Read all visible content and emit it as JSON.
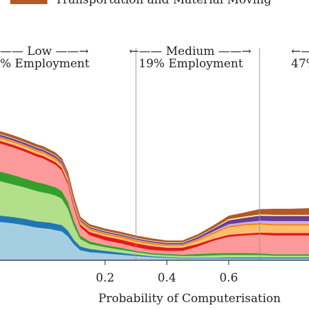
{
  "legend": {
    "visible_entry": "Transportation and Material Moving",
    "visible_color": "#b45a24"
  },
  "regions": [
    {
      "name_line": "—— Low ——→",
      "emp_line": "% Employment"
    },
    {
      "name_line": "←—— Medium ——→",
      "emp_line": "19% Employment"
    },
    {
      "name_line": "←—",
      "emp_line": "47%"
    }
  ],
  "chart_data": {
    "type": "area",
    "stacked": true,
    "xlabel": "Probability of Computerisation",
    "ylabel": "",
    "xlim": [
      -0.14,
      0.86
    ],
    "x_ticks": [
      0.2,
      0.4,
      0.6
    ],
    "x_tick_labels": [
      "0.2",
      "0.4",
      "0.6"
    ],
    "region_boundaries": [
      0.3,
      0.7
    ],
    "x": [
      -0.14,
      -0.1,
      -0.06,
      -0.04,
      -0.02,
      0.0,
      0.02,
      0.04,
      0.06,
      0.08,
      0.1,
      0.12,
      0.15,
      0.2,
      0.25,
      0.3,
      0.35,
      0.4,
      0.45,
      0.5,
      0.55,
      0.6,
      0.65,
      0.7,
      0.75,
      0.8,
      0.86
    ],
    "series": [
      {
        "color": "#a6cee3",
        "values": [
          60,
          58,
          55,
          53,
          51,
          50,
          49,
          47,
          45,
          37,
          24,
          15,
          12,
          10,
          8,
          6,
          4,
          3,
          2,
          2,
          2,
          2,
          2,
          2,
          2,
          2,
          2
        ]
      },
      {
        "color": "#1f78b4",
        "values": [
          10,
          10,
          10,
          10,
          10,
          10,
          10,
          10,
          10,
          9,
          7,
          6,
          5,
          4,
          3,
          2,
          1.5,
          1,
          1,
          1,
          1,
          1.5,
          1.5,
          1.5,
          1.5,
          1.5,
          1.5
        ]
      },
      {
        "color": "#b2df8a",
        "values": [
          55,
          52,
          50,
          49,
          48,
          47,
          46,
          45,
          42,
          35,
          22,
          12,
          8,
          6,
          5,
          4,
          3,
          3,
          3,
          3,
          4,
          4,
          4,
          4,
          3,
          3,
          3
        ]
      },
      {
        "color": "#33a02c",
        "values": [
          15,
          15,
          14,
          14,
          14,
          14,
          13,
          13,
          12,
          11,
          8,
          5,
          4,
          3,
          3,
          2,
          2,
          2,
          2,
          3,
          3,
          3,
          3,
          2.5,
          2,
          2,
          2
        ]
      },
      {
        "color": "#fb9a99",
        "values": [
          45,
          44,
          43,
          42,
          41,
          40,
          38,
          36,
          33,
          28,
          20,
          14,
          10,
          8,
          7,
          6,
          5,
          5,
          6,
          12,
          20,
          26,
          28,
          30,
          30,
          30,
          30
        ]
      },
      {
        "color": "#e31a1c",
        "values": [
          4,
          4,
          4,
          4,
          4,
          4,
          4,
          4,
          4,
          4,
          4,
          4,
          5,
          6,
          6,
          6,
          6,
          5,
          5,
          4,
          3,
          3,
          3,
          3,
          4,
          4,
          4
        ]
      },
      {
        "color": "#fdbf6f",
        "values": [
          4,
          4,
          4,
          4,
          4,
          4,
          4,
          4,
          4,
          4,
          4,
          3,
          3,
          3,
          3,
          3,
          3,
          3,
          3,
          5,
          8,
          12,
          13,
          13,
          12,
          12,
          12
        ]
      },
      {
        "color": "#ff7f00",
        "values": [
          2,
          2,
          2,
          2,
          2,
          2,
          2,
          2,
          2,
          2,
          2,
          2,
          2,
          2,
          2,
          2,
          2,
          1.5,
          1.5,
          2,
          2,
          2,
          2,
          2,
          2,
          2,
          2
        ]
      },
      {
        "color": "#cab2d6",
        "values": [
          1,
          1,
          1,
          1,
          1,
          1,
          1,
          1,
          1,
          1,
          1,
          1,
          1,
          1,
          1,
          1,
          1,
          1,
          1,
          1,
          2,
          3,
          3,
          4,
          5,
          5,
          5
        ]
      },
      {
        "color": "#6a3d9a",
        "values": [
          3,
          3,
          3,
          3,
          3,
          3,
          3,
          3,
          3,
          3,
          3,
          2,
          2,
          2,
          2,
          2,
          2,
          2,
          2,
          3,
          4,
          6,
          7,
          8,
          8,
          8,
          8
        ]
      },
      {
        "color": "#ffff99",
        "values": [
          1,
          1,
          1,
          1,
          1,
          1,
          1,
          1,
          1,
          1,
          1,
          1,
          1,
          1,
          1,
          1,
          1,
          1,
          1,
          1,
          1,
          2,
          2,
          2,
          2,
          2,
          2
        ]
      },
      {
        "color": "#b15928",
        "values": [
          4,
          4,
          4,
          4,
          4,
          4,
          4,
          4,
          4,
          4,
          3,
          3,
          3,
          3,
          3,
          3,
          3,
          2.5,
          2.5,
          3,
          4,
          5,
          6,
          8,
          9,
          9,
          10
        ]
      }
    ],
    "ylim": [
      0,
      260
    ],
    "grid": false,
    "legend_position": "top"
  }
}
